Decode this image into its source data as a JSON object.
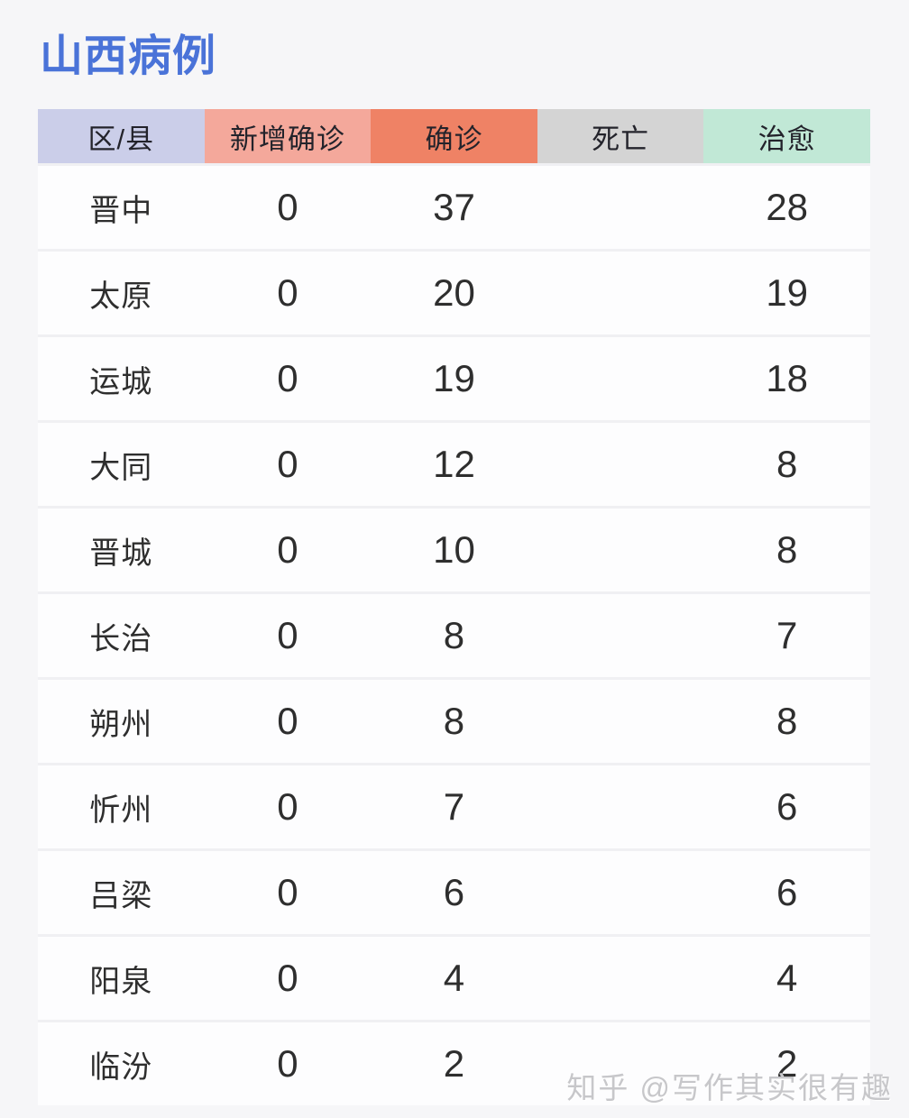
{
  "page": {
    "title": "山西病例",
    "watermark": "知乎 @写作其实很有趣"
  },
  "colors": {
    "title_blue": "#4a73d8",
    "header_region_bg": "#cbcee9",
    "header_new_confirmed_bg": "#f4a89b",
    "header_confirmed_bg": "#ef8265",
    "header_deaths_bg": "#d4d4d4",
    "header_cured_bg": "#c1e8d6",
    "page_bg": "#f6f6f8",
    "row_bg": "#fdfdfe",
    "watermark_gray": "#c7c7ca"
  },
  "table": {
    "columns": [
      {
        "key": "region",
        "label": "区/县",
        "bg": "#cbcee9"
      },
      {
        "key": "new_confirmed",
        "label": "新增确诊",
        "bg": "#f4a89b"
      },
      {
        "key": "confirmed",
        "label": "确诊",
        "bg": "#ef8265"
      },
      {
        "key": "deaths",
        "label": "死亡",
        "bg": "#d4d4d4"
      },
      {
        "key": "cured",
        "label": "治愈",
        "bg": "#c1e8d6"
      }
    ],
    "rows": [
      {
        "region": "晋中",
        "new_confirmed": "0",
        "confirmed": "37",
        "deaths": "",
        "cured": "28"
      },
      {
        "region": "太原",
        "new_confirmed": "0",
        "confirmed": "20",
        "deaths": "",
        "cured": "19"
      },
      {
        "region": "运城",
        "new_confirmed": "0",
        "confirmed": "19",
        "deaths": "",
        "cured": "18"
      },
      {
        "region": "大同",
        "new_confirmed": "0",
        "confirmed": "12",
        "deaths": "",
        "cured": "8"
      },
      {
        "region": "晋城",
        "new_confirmed": "0",
        "confirmed": "10",
        "deaths": "",
        "cured": "8"
      },
      {
        "region": "长治",
        "new_confirmed": "0",
        "confirmed": "8",
        "deaths": "",
        "cured": "7"
      },
      {
        "region": "朔州",
        "new_confirmed": "0",
        "confirmed": "8",
        "deaths": "",
        "cured": "8"
      },
      {
        "region": "忻州",
        "new_confirmed": "0",
        "confirmed": "7",
        "deaths": "",
        "cured": "6"
      },
      {
        "region": "吕梁",
        "new_confirmed": "0",
        "confirmed": "6",
        "deaths": "",
        "cured": "6"
      },
      {
        "region": "阳泉",
        "new_confirmed": "0",
        "confirmed": "4",
        "deaths": "",
        "cured": "4"
      },
      {
        "region": "临汾",
        "new_confirmed": "0",
        "confirmed": "2",
        "deaths": "",
        "cured": "2"
      }
    ]
  },
  "chart_data": {
    "type": "table",
    "title": "山西病例",
    "columns": [
      "区/县",
      "新增确诊",
      "确诊",
      "死亡",
      "治愈"
    ],
    "rows": [
      [
        "晋中",
        "0",
        "37",
        "",
        "28"
      ],
      [
        "太原",
        "0",
        "20",
        "",
        "19"
      ],
      [
        "运城",
        "0",
        "19",
        "",
        "18"
      ],
      [
        "大同",
        "0",
        "12",
        "",
        "8"
      ],
      [
        "晋城",
        "0",
        "10",
        "",
        "8"
      ],
      [
        "长治",
        "0",
        "8",
        "",
        "7"
      ],
      [
        "朔州",
        "0",
        "8",
        "",
        "8"
      ],
      [
        "忻州",
        "0",
        "7",
        "",
        "6"
      ],
      [
        "吕梁",
        "0",
        "6",
        "",
        "6"
      ],
      [
        "阳泉",
        "0",
        "4",
        "",
        "4"
      ],
      [
        "临汾",
        "0",
        "2",
        "",
        "2"
      ]
    ]
  }
}
